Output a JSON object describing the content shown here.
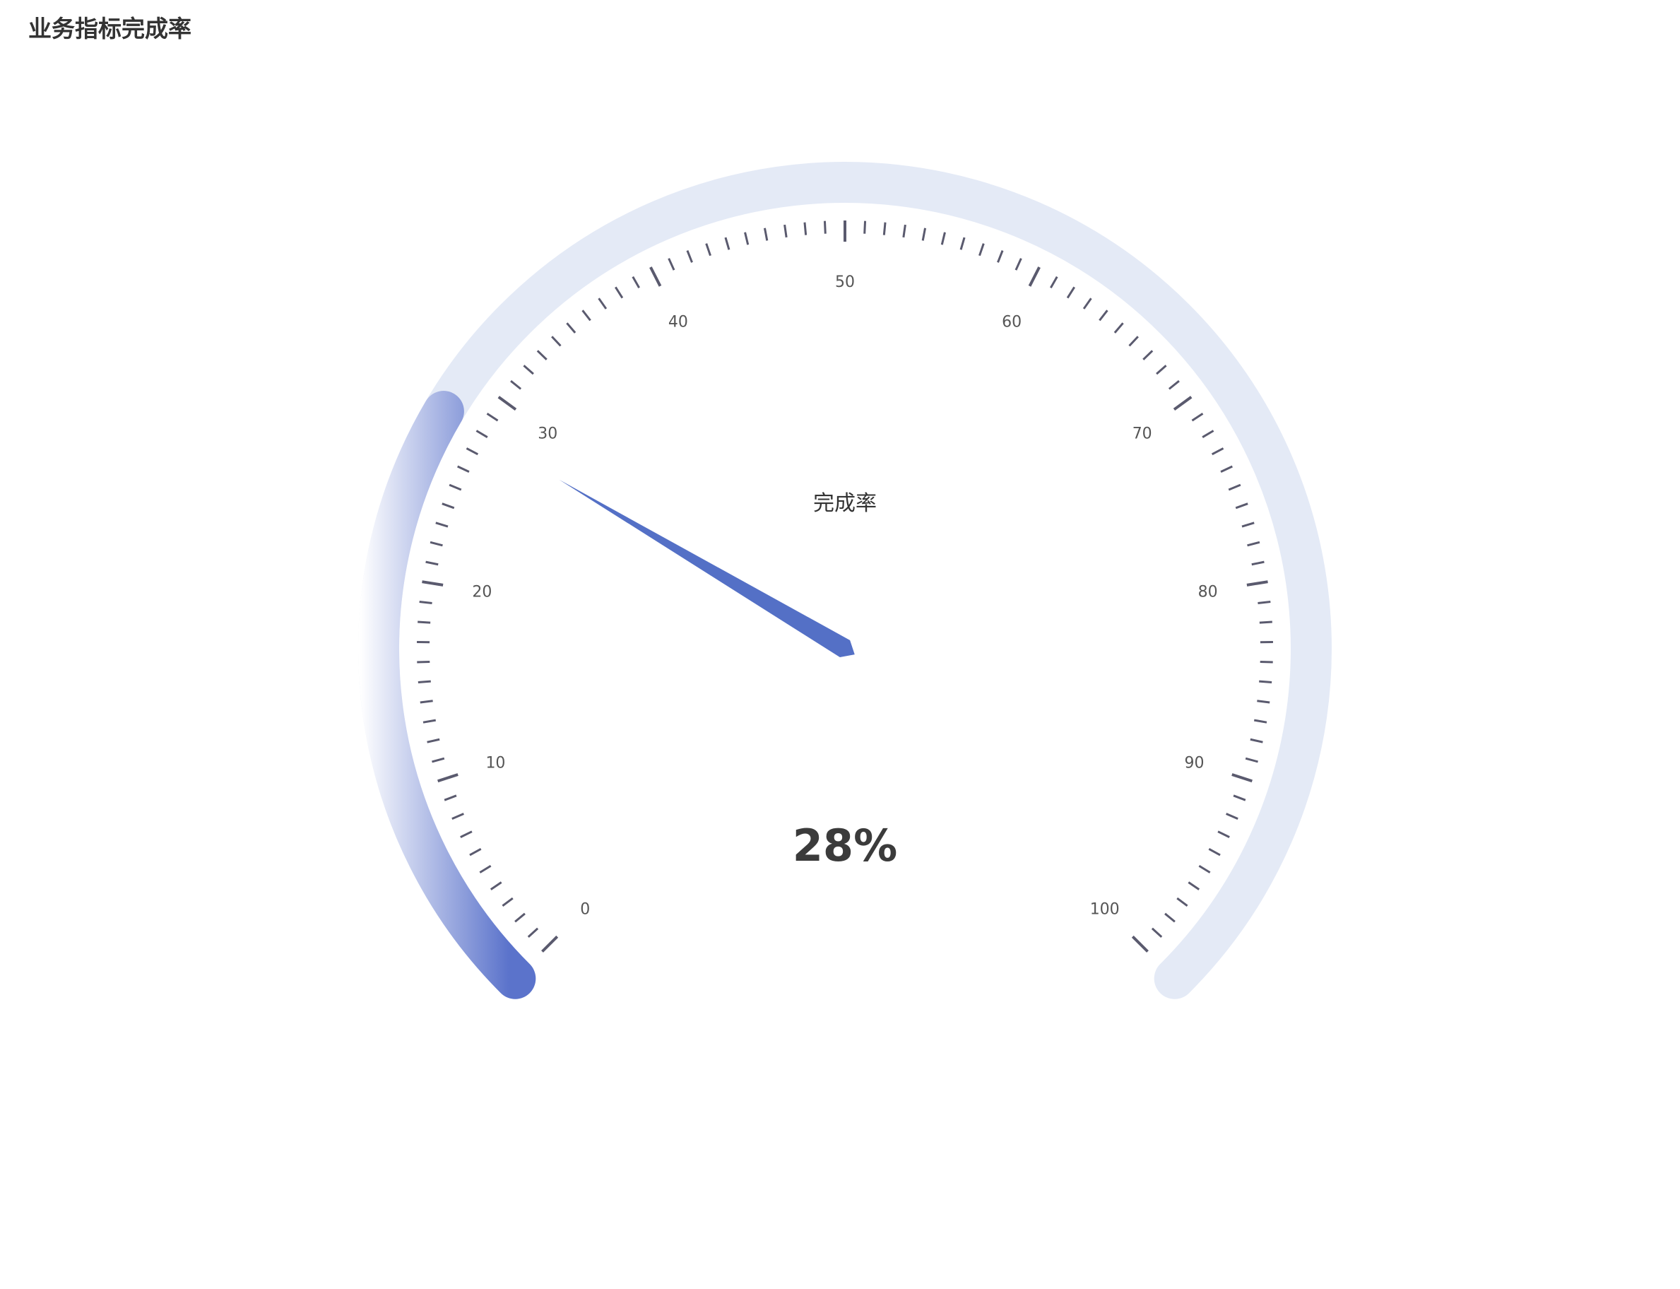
{
  "page": {
    "title": "业务指标完成率"
  },
  "chart_data": {
    "type": "gauge",
    "title": "业务指标完成率",
    "series_name": "完成率",
    "value": 28,
    "value_label": "28%",
    "min": 0,
    "max": 100,
    "start_angle_deg": 225,
    "end_angle_deg": -45,
    "major_ticks": [
      0,
      10,
      20,
      30,
      40,
      50,
      60,
      70,
      80,
      90,
      100
    ],
    "tick_labels": [
      "0",
      "10",
      "20",
      "30",
      "40",
      "50",
      "60",
      "70",
      "80",
      "90",
      "100"
    ],
    "minor_ticks_per_major": 10,
    "colors": {
      "track": "#e4eaf6",
      "progress_start": "#ffffff",
      "progress_end": "#5b73cb",
      "pointer": "#5470c6",
      "tick": "#5a5a6e",
      "label": "#555555",
      "value_text": "#3b3b3b"
    }
  }
}
